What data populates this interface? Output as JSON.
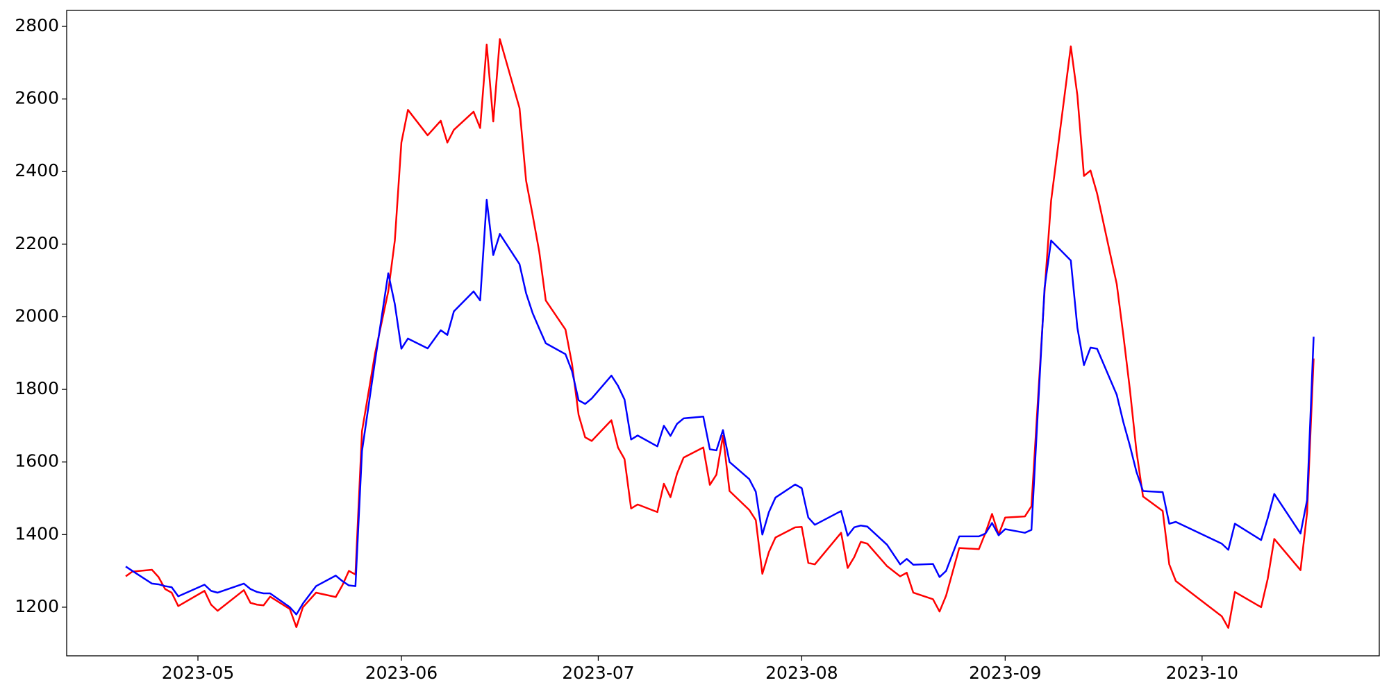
{
  "chart_data": {
    "type": "line",
    "x": [
      "2023-04-20",
      "2023-04-21",
      "2023-04-24",
      "2023-04-25",
      "2023-04-26",
      "2023-04-27",
      "2023-04-28",
      "2023-05-02",
      "2023-05-03",
      "2023-05-04",
      "2023-05-08",
      "2023-05-09",
      "2023-05-10",
      "2023-05-11",
      "2023-05-12",
      "2023-05-15",
      "2023-05-16",
      "2023-05-17",
      "2023-05-19",
      "2023-05-22",
      "2023-05-23",
      "2023-05-24",
      "2023-05-25",
      "2023-05-26",
      "2023-05-28",
      "2023-05-30",
      "2023-05-31",
      "2023-06-01",
      "2023-06-02",
      "2023-06-05",
      "2023-06-07",
      "2023-06-08",
      "2023-06-09",
      "2023-06-12",
      "2023-06-13",
      "2023-06-14",
      "2023-06-15",
      "2023-06-16",
      "2023-06-19",
      "2023-06-20",
      "2023-06-21",
      "2023-06-22",
      "2023-06-23",
      "2023-06-26",
      "2023-06-27",
      "2023-06-28",
      "2023-06-29",
      "2023-06-30",
      "2023-07-03",
      "2023-07-04",
      "2023-07-05",
      "2023-07-06",
      "2023-07-07",
      "2023-07-10",
      "2023-07-11",
      "2023-07-12",
      "2023-07-13",
      "2023-07-14",
      "2023-07-17",
      "2023-07-18",
      "2023-07-19",
      "2023-07-20",
      "2023-07-21",
      "2023-07-24",
      "2023-07-25",
      "2023-07-26",
      "2023-07-27",
      "2023-07-28",
      "2023-07-31",
      "2023-08-01",
      "2023-08-02",
      "2023-08-03",
      "2023-08-07",
      "2023-08-08",
      "2023-08-09",
      "2023-08-10",
      "2023-08-11",
      "2023-08-14",
      "2023-08-16",
      "2023-08-17",
      "2023-08-18",
      "2023-08-21",
      "2023-08-22",
      "2023-08-23",
      "2023-08-25",
      "2023-08-28",
      "2023-08-29",
      "2023-08-30",
      "2023-08-31",
      "2023-09-01",
      "2023-09-04",
      "2023-09-05",
      "2023-09-07",
      "2023-09-08",
      "2023-09-11",
      "2023-09-12",
      "2023-09-13",
      "2023-09-14",
      "2023-09-15",
      "2023-09-18",
      "2023-09-19",
      "2023-09-20",
      "2023-09-21",
      "2023-09-22",
      "2023-09-25",
      "2023-09-26",
      "2023-09-27",
      "2023-10-04",
      "2023-10-05",
      "2023-10-06",
      "2023-10-10",
      "2023-10-11",
      "2023-10-12",
      "2023-10-16",
      "2023-10-17",
      "2023-10-18"
    ],
    "series": [
      {
        "color": "#ff0000",
        "values": [
          1285,
          1298,
          1303,
          1283,
          1250,
          1240,
          1203,
          1245,
          1207,
          1190,
          1247,
          1212,
          1207,
          1205,
          1229,
          1195,
          1145,
          1200,
          1240,
          1228,
          1260,
          1300,
          1290,
          1685,
          1900,
          2070,
          2210,
          2480,
          2570,
          2500,
          2540,
          2480,
          2515,
          2565,
          2520,
          2750,
          2538,
          2765,
          2575,
          2375,
          2280,
          2180,
          2045,
          1965,
          1870,
          1730,
          1668,
          1658,
          1715,
          1640,
          1608,
          1472,
          1483,
          1462,
          1540,
          1503,
          1568,
          1612,
          1640,
          1537,
          1565,
          1672,
          1520,
          1468,
          1440,
          1292,
          1352,
          1392,
          1420,
          1421,
          1322,
          1318,
          1405,
          1308,
          1338,
          1380,
          1375,
          1313,
          1285,
          1295,
          1240,
          1222,
          1188,
          1232,
          1363,
          1360,
          1405,
          1457,
          1400,
          1447,
          1450,
          1478,
          2070,
          2320,
          2745,
          2610,
          2388,
          2403,
          2340,
          2090,
          1950,
          1800,
          1630,
          1505,
          1465,
          1318,
          1272,
          1175,
          1143,
          1242,
          1200,
          1278,
          1388,
          1302,
          1460,
          1885
        ]
      },
      {
        "color": "#0000ff",
        "values": [
          1312,
          1300,
          1265,
          1263,
          1258,
          1255,
          1230,
          1262,
          1245,
          1240,
          1265,
          1250,
          1242,
          1238,
          1238,
          1200,
          1180,
          1210,
          1258,
          1287,
          1272,
          1260,
          1258,
          1630,
          1880,
          2120,
          2035,
          1912,
          1940,
          1913,
          1963,
          1950,
          2015,
          2070,
          2045,
          2322,
          2170,
          2228,
          2145,
          2065,
          2010,
          1968,
          1927,
          1897,
          1850,
          1770,
          1760,
          1775,
          1838,
          1810,
          1772,
          1662,
          1673,
          1643,
          1700,
          1672,
          1705,
          1720,
          1725,
          1635,
          1632,
          1688,
          1600,
          1553,
          1518,
          1400,
          1462,
          1502,
          1538,
          1528,
          1447,
          1427,
          1465,
          1397,
          1420,
          1425,
          1422,
          1372,
          1318,
          1333,
          1317,
          1319,
          1283,
          1300,
          1395,
          1395,
          1403,
          1432,
          1398,
          1415,
          1405,
          1413,
          2080,
          2210,
          2155,
          1970,
          1867,
          1915,
          1912,
          1785,
          1710,
          1645,
          1573,
          1520,
          1517,
          1430,
          1435,
          1375,
          1358,
          1430,
          1385,
          1445,
          1512,
          1403,
          1495,
          1945
        ]
      }
    ],
    "xlim": [
      "2023-04-11",
      "2023-10-28"
    ],
    "xticks": [
      "2023-05",
      "2023-06",
      "2023-07",
      "2023-08",
      "2023-09",
      "2023-10"
    ],
    "ylim": [
      1066,
      2844
    ],
    "yticks": [
      1200,
      1400,
      1600,
      1800,
      2000,
      2200,
      2400,
      2600,
      2800
    ],
    "grid": false
  }
}
